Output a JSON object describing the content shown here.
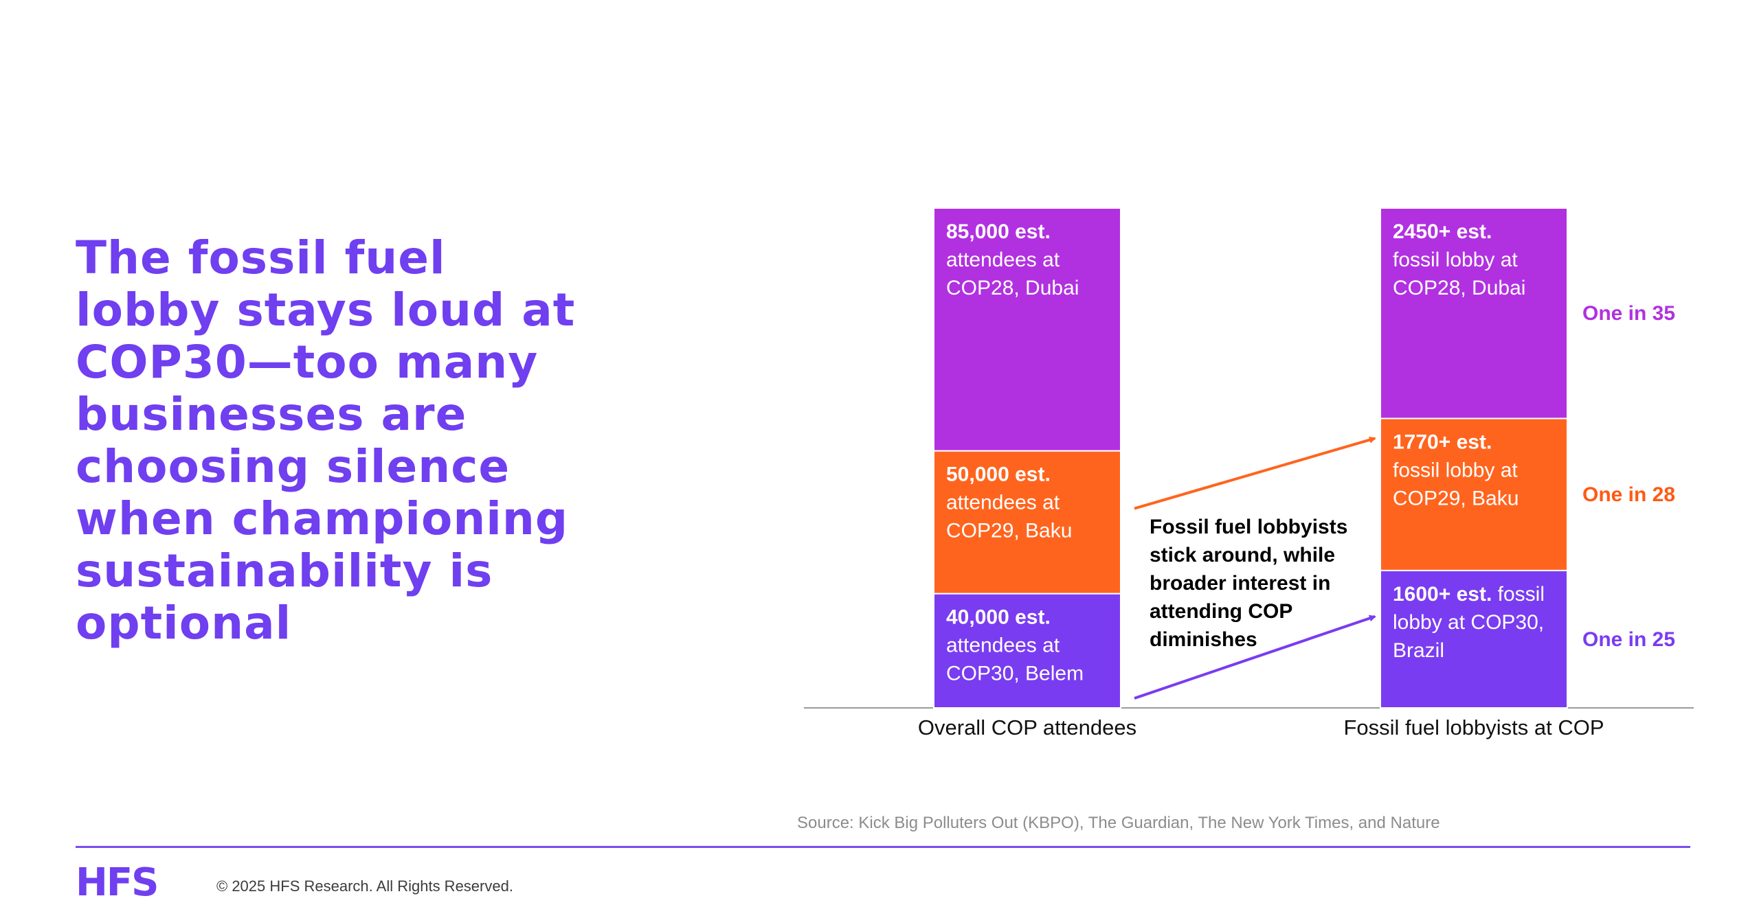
{
  "headline": [
    "The fossil fuel",
    "lobby stays loud at",
    "COP30—too many",
    "businesses are",
    "choosing silence",
    "when championing",
    "sustainability is",
    "optional"
  ],
  "colors": {
    "purple_heading": "#6f3ff0",
    "magenta": "#b131e0",
    "orange": "#ff641e",
    "violet": "#7a3cf0",
    "ratio_magenta": "#b131e0",
    "ratio_orange": "#ff5a14",
    "ratio_violet": "#7a3cf0"
  },
  "chart_data": {
    "type": "bar",
    "stacked": true,
    "normalized": true,
    "categories": [
      "Overall COP attendees",
      "Fossil fuel lobbyists at COP"
    ],
    "series": [
      {
        "name": "COP30",
        "color": "#7a3cf0",
        "values": [
          40000,
          1600
        ]
      },
      {
        "name": "COP29",
        "color": "#ff641e",
        "values": [
          50000,
          1770
        ]
      },
      {
        "name": "COP28",
        "color": "#b131e0",
        "values": [
          85000,
          2450
        ]
      }
    ],
    "segment_labels": [
      [
        {
          "bold": "40,000 est.",
          "lines": [
            "attendees at",
            "COP30, Belem"
          ]
        },
        {
          "bold": "50,000 est.",
          "lines": [
            "attendees at",
            "COP29, Baku"
          ]
        },
        {
          "bold": "85,000 est.",
          "lines": [
            "attendees at",
            "COP28, Dubai"
          ]
        }
      ],
      [
        {
          "bold": "1600+ est.",
          "bold_tail": " fossil",
          "lines": [
            "lobby at COP30,",
            "Brazil"
          ]
        },
        {
          "bold": "1770+ est.",
          "lines": [
            "fossil lobby at",
            "COP29, Baku"
          ]
        },
        {
          "bold": "2450+ est.",
          "lines": [
            "fossil lobby at",
            "COP28, Dubai"
          ]
        }
      ]
    ],
    "ratios": [
      "One in 25",
      "One in 28",
      "One in 35"
    ],
    "annotation": [
      "Fossil fuel lobbyists",
      "stick around, while",
      "broader interest in",
      "attending COP",
      "diminishes"
    ]
  },
  "source": "Source: Kick Big Polluters Out (KBPO), The Guardian, The New York Times, and Nature",
  "footer": {
    "logo": "HFS",
    "copyright": "© 2025 HFS Research.  All Rights Reserved."
  }
}
